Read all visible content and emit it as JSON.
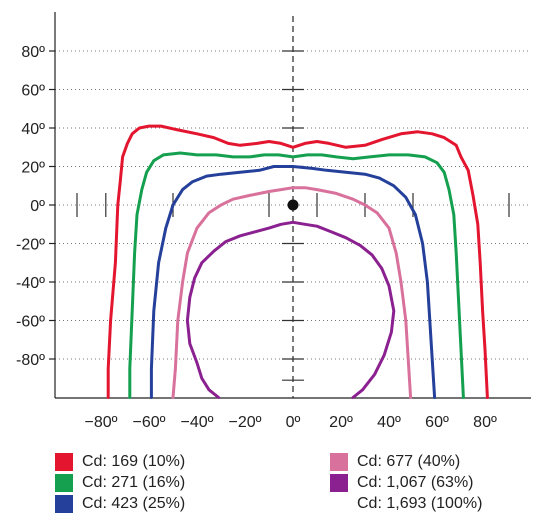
{
  "chart_data": {
    "type": "line",
    "title": "",
    "xlabel": "",
    "ylabel": "",
    "x_ticks": [
      "−80º",
      "−60º",
      "−40º",
      "−20º",
      "0º",
      "20º",
      "40º",
      "60º",
      "80º"
    ],
    "y_ticks": [
      "80º",
      "60º",
      "40º",
      "20º",
      "0º",
      "-20º",
      "-40º",
      "-60º",
      "-80º"
    ],
    "xlim": [
      -100,
      100
    ],
    "ylim": [
      -100,
      100
    ],
    "grid": "dotted horizontal at y ticks",
    "center_marker": {
      "x": 0,
      "y": 0
    },
    "series": [
      {
        "name": "Cd: 169 (10%)",
        "color": "#e3152f",
        "points": [
          [
            -77,
            -100
          ],
          [
            -77,
            -85
          ],
          [
            -76,
            -60
          ],
          [
            -74,
            -30
          ],
          [
            -73,
            0
          ],
          [
            -72,
            12
          ],
          [
            -71,
            25
          ],
          [
            -69,
            32
          ],
          [
            -67,
            37
          ],
          [
            -64,
            40
          ],
          [
            -60,
            41
          ],
          [
            -55,
            41
          ],
          [
            -48,
            39
          ],
          [
            -40,
            37
          ],
          [
            -33,
            35
          ],
          [
            -27,
            32
          ],
          [
            -22,
            31
          ],
          [
            -15,
            32
          ],
          [
            -10,
            33
          ],
          [
            -5,
            32
          ],
          [
            0,
            30
          ],
          [
            5,
            32
          ],
          [
            10,
            33
          ],
          [
            15,
            32
          ],
          [
            22,
            30
          ],
          [
            30,
            31
          ],
          [
            37,
            34
          ],
          [
            45,
            37
          ],
          [
            52,
            38
          ],
          [
            58,
            37
          ],
          [
            63,
            35
          ],
          [
            68,
            31
          ],
          [
            70,
            25
          ],
          [
            73,
            18
          ],
          [
            75,
            5
          ],
          [
            77,
            -10
          ],
          [
            78,
            -30
          ],
          [
            79,
            -55
          ],
          [
            80,
            -75
          ],
          [
            81,
            -100
          ]
        ]
      },
      {
        "name": "Cd: 271 (16%)",
        "color": "#14a04f",
        "points": [
          [
            -68,
            -100
          ],
          [
            -68,
            -85
          ],
          [
            -67,
            -55
          ],
          [
            -66,
            -25
          ],
          [
            -65,
            -5
          ],
          [
            -63,
            8
          ],
          [
            -61,
            17
          ],
          [
            -58,
            23
          ],
          [
            -54,
            26
          ],
          [
            -47,
            27
          ],
          [
            -40,
            26
          ],
          [
            -32,
            26
          ],
          [
            -25,
            25
          ],
          [
            -18,
            25
          ],
          [
            -12,
            26
          ],
          [
            -6,
            26
          ],
          [
            0,
            25
          ],
          [
            6,
            26
          ],
          [
            12,
            26
          ],
          [
            18,
            25
          ],
          [
            25,
            24
          ],
          [
            32,
            25
          ],
          [
            40,
            26
          ],
          [
            48,
            26
          ],
          [
            55,
            25
          ],
          [
            60,
            22
          ],
          [
            63,
            17
          ],
          [
            65,
            8
          ],
          [
            67,
            -5
          ],
          [
            68,
            -25
          ],
          [
            69,
            -50
          ],
          [
            70,
            -75
          ],
          [
            71,
            -100
          ]
        ]
      },
      {
        "name": "Cd: 423 (25%)",
        "color": "#24409a",
        "points": [
          [
            -59,
            -100
          ],
          [
            -59,
            -85
          ],
          [
            -58,
            -55
          ],
          [
            -56,
            -30
          ],
          [
            -53,
            -12
          ],
          [
            -50,
            0
          ],
          [
            -46,
            8
          ],
          [
            -42,
            12
          ],
          [
            -36,
            15
          ],
          [
            -30,
            16
          ],
          [
            -22,
            17
          ],
          [
            -14,
            18
          ],
          [
            -8,
            20
          ],
          [
            0,
            20
          ],
          [
            8,
            19
          ],
          [
            14,
            18
          ],
          [
            22,
            17
          ],
          [
            30,
            16
          ],
          [
            36,
            14
          ],
          [
            42,
            10
          ],
          [
            47,
            4
          ],
          [
            51,
            -5
          ],
          [
            54,
            -20
          ],
          [
            56,
            -40
          ],
          [
            57,
            -60
          ],
          [
            58,
            -80
          ],
          [
            59,
            -100
          ]
        ]
      },
      {
        "name": "Cd: 677 (40%)",
        "color": "#d8719b",
        "points": [
          [
            -50,
            -100
          ],
          [
            -49,
            -85
          ],
          [
            -48,
            -60
          ],
          [
            -46,
            -40
          ],
          [
            -44,
            -25
          ],
          [
            -40,
            -12
          ],
          [
            -35,
            -4
          ],
          [
            -30,
            0
          ],
          [
            -25,
            3
          ],
          [
            -18,
            5
          ],
          [
            -10,
            7
          ],
          [
            -5,
            8
          ],
          [
            0,
            9
          ],
          [
            5,
            9
          ],
          [
            10,
            8
          ],
          [
            18,
            6
          ],
          [
            25,
            3
          ],
          [
            30,
            0
          ],
          [
            35,
            -4
          ],
          [
            40,
            -12
          ],
          [
            43,
            -25
          ],
          [
            45,
            -40
          ],
          [
            47,
            -60
          ],
          [
            48,
            -80
          ],
          [
            49,
            -100
          ]
        ]
      },
      {
        "name": "Cd: 1,067 (63%)",
        "color": "#8b2090",
        "points": [
          [
            -31,
            -100
          ],
          [
            -35,
            -96
          ],
          [
            -38,
            -90
          ],
          [
            -40,
            -82
          ],
          [
            -43,
            -72
          ],
          [
            -44,
            -60
          ],
          [
            -43,
            -48
          ],
          [
            -41,
            -38
          ],
          [
            -38,
            -30
          ],
          [
            -33,
            -24
          ],
          [
            -28,
            -19
          ],
          [
            -22,
            -16
          ],
          [
            -16,
            -14
          ],
          [
            -10,
            -12
          ],
          [
            -5,
            -10
          ],
          [
            0,
            -9
          ],
          [
            5,
            -10
          ],
          [
            10,
            -11
          ],
          [
            16,
            -14
          ],
          [
            22,
            -17
          ],
          [
            28,
            -21
          ],
          [
            33,
            -26
          ],
          [
            37,
            -33
          ],
          [
            40,
            -42
          ],
          [
            42,
            -55
          ],
          [
            41,
            -66
          ],
          [
            38,
            -78
          ],
          [
            34,
            -88
          ],
          [
            29,
            -96
          ],
          [
            25,
            -100
          ]
        ]
      },
      {
        "name": "Cd: 1,693 (100%)",
        "color": "#ffffff",
        "points": []
      }
    ]
  },
  "legend": [
    {
      "label": "Cd: 169 (10%)",
      "color": "#e3152f",
      "swatch": true
    },
    {
      "label": "Cd: 271 (16%)",
      "color": "#14a04f",
      "swatch": true
    },
    {
      "label": "Cd: 423 (25%)",
      "color": "#24409a",
      "swatch": true
    },
    {
      "label": "Cd: 677 (40%)",
      "color": "#d8719b",
      "swatch": true
    },
    {
      "label": "Cd: 1,067 (63%)",
      "color": "#8b2090",
      "swatch": true
    },
    {
      "label": "Cd: 1,693 (100%)",
      "color": "#ffffff",
      "swatch": false
    }
  ]
}
